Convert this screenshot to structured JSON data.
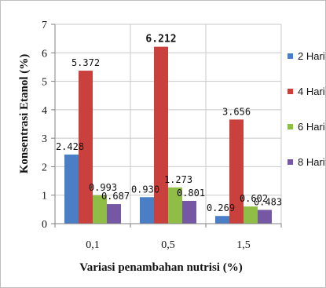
{
  "chart_data": {
    "type": "bar",
    "xlabel": "Variasi penambahan nutrisi (%)",
    "ylabel": "Konsentrasi Etanol (%)",
    "ylim": [
      0,
      7
    ],
    "yticks": [
      "0",
      "1",
      "2",
      "3",
      "4",
      "5",
      "6",
      "7"
    ],
    "categories": [
      "0,1",
      "0,5",
      "1,5"
    ],
    "grid": true,
    "legend_position": "right",
    "series": [
      {
        "name": "2 Hari",
        "color": "#4a7fc6",
        "values": [
          2.428,
          0.93,
          0.269
        ],
        "labels": [
          "2.428",
          "0.930",
          "0.269"
        ]
      },
      {
        "name": "4 Hari",
        "color": "#c9403d",
        "values": [
          5.372,
          6.212,
          3.656
        ],
        "labels": [
          "5.372",
          "6.212",
          "3.656"
        ]
      },
      {
        "name": "6 Hari",
        "color": "#8fbd45",
        "values": [
          0.993,
          1.273,
          0.602
        ],
        "labels": [
          "0.993",
          "1.273",
          "0.602"
        ]
      },
      {
        "name": "8 Hari",
        "color": "#7657a3",
        "values": [
          0.687,
          0.801,
          0.483
        ],
        "labels": [
          "0.687",
          "0.801",
          "0.483"
        ]
      }
    ]
  }
}
